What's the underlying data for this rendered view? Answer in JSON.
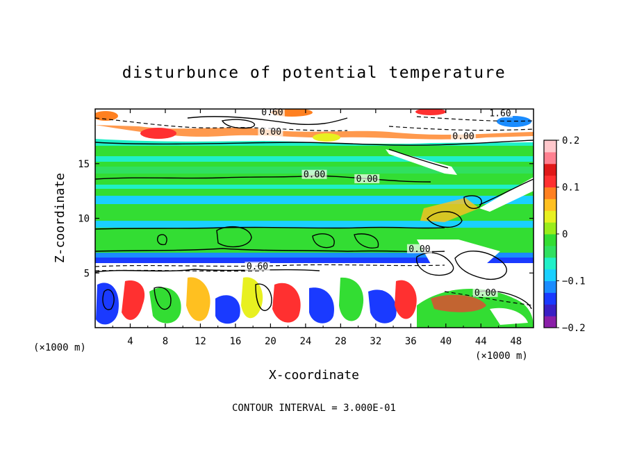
{
  "chart_data": {
    "type": "heatmap",
    "title": "disturbunce of potential temperature",
    "xlabel": "X-coordinate",
    "ylabel": "Z-coordinate",
    "x_unit_left": "(×1000 m)",
    "x_unit_right": "(×1000 m)",
    "xlim": [
      0,
      50
    ],
    "ylim": [
      0,
      20
    ],
    "x_ticks": [
      4,
      8,
      12,
      16,
      20,
      24,
      28,
      32,
      36,
      40,
      44,
      48
    ],
    "y_ticks": [
      5,
      10,
      15
    ],
    "x_tick_labels": [
      "4",
      "8",
      "12",
      "16",
      "20",
      "24",
      "28",
      "32",
      "36",
      "40",
      "44",
      "48"
    ],
    "y_tick_labels": [
      "5",
      "10",
      "15"
    ],
    "colorbar": {
      "range": [
        -0.2,
        0.2
      ],
      "tick_values": [
        0.2,
        0.1,
        0,
        -0.1,
        -0.2
      ],
      "tick_labels": [
        "0.2",
        "0.1",
        "0",
        "−0.1",
        "−0.2"
      ],
      "colors": [
        "#8a1fa8",
        "#3a1fc4",
        "#1a3aff",
        "#1a8cff",
        "#1ad0ff",
        "#20f0c8",
        "#30e060",
        "#33dd33",
        "#9aec1a",
        "#e8f020",
        "#ffc020",
        "#ff8020",
        "#ff3030",
        "#e01818",
        "#ff8090",
        "#ffc8cc"
      ]
    },
    "contour_labels": [
      {
        "text": "0.60",
        "x": 20.2,
        "y": 19.5
      },
      {
        "text": "1.60",
        "x": 46.2,
        "y": 19.4
      },
      {
        "text": "0.00",
        "x": 20.0,
        "y": 17.7
      },
      {
        "text": "0.00",
        "x": 42.0,
        "y": 17.3
      },
      {
        "text": "0.00",
        "x": 25.0,
        "y": 13.8
      },
      {
        "text": "0.00",
        "x": 31.0,
        "y": 13.4
      },
      {
        "text": "0.00",
        "x": 37.0,
        "y": 7.0
      },
      {
        "text": "0.60",
        "x": 18.5,
        "y": 5.4
      },
      {
        "text": "0.00",
        "x": 44.5,
        "y": 3.0
      }
    ],
    "footnote": "CONTOUR INTERVAL = 3.000E-01"
  }
}
